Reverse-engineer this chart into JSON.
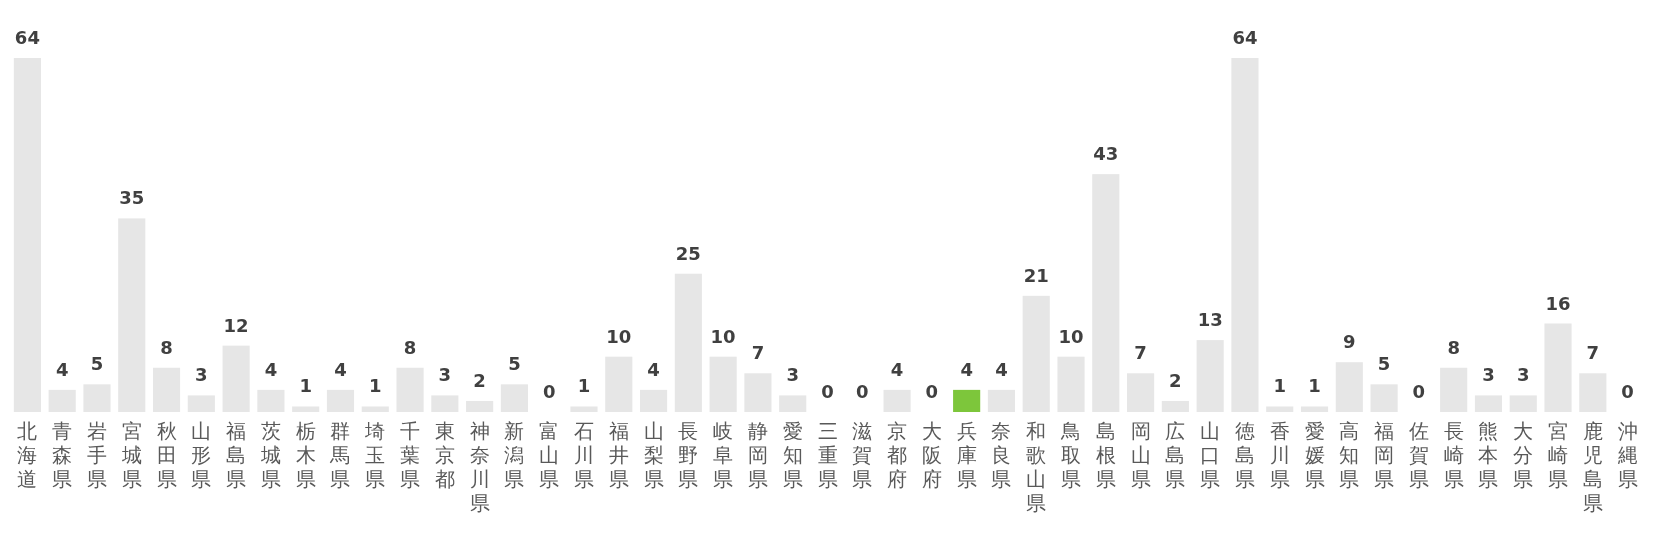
{
  "chart_data": {
    "type": "bar",
    "categories": [
      "北海道",
      "青森県",
      "岩手県",
      "宮城県",
      "秋田県",
      "山形県",
      "福島県",
      "茨城県",
      "栃木県",
      "群馬県",
      "埼玉県",
      "千葉県",
      "東京都",
      "神奈川県",
      "新潟県",
      "富山県",
      "石川県",
      "福井県",
      "山梨県",
      "長野県",
      "岐阜県",
      "静岡県",
      "愛知県",
      "三重県",
      "滋賀県",
      "京都府",
      "大阪府",
      "兵庫県",
      "奈良県",
      "和歌山県",
      "鳥取県",
      "島根県",
      "岡山県",
      "広島県",
      "山口県",
      "徳島県",
      "香川県",
      "愛媛県",
      "高知県",
      "福岡県",
      "佐賀県",
      "長崎県",
      "熊本県",
      "大分県",
      "宮崎県",
      "鹿児島県",
      "沖縄県"
    ],
    "values": [
      64,
      4,
      5,
      35,
      8,
      3,
      12,
      4,
      1,
      4,
      1,
      8,
      3,
      2,
      5,
      0,
      1,
      10,
      4,
      25,
      10,
      7,
      3,
      0,
      0,
      4,
      0,
      4,
      4,
      21,
      10,
      43,
      7,
      2,
      13,
      64,
      1,
      1,
      9,
      5,
      0,
      8,
      3,
      3,
      16,
      7,
      0
    ],
    "colors": [
      "#e6e6e6",
      "#e6e6e6",
      "#e6e6e6",
      "#e6e6e6",
      "#e6e6e6",
      "#e6e6e6",
      "#e6e6e6",
      "#e6e6e6",
      "#e6e6e6",
      "#e6e6e6",
      "#e6e6e6",
      "#e6e6e6",
      "#e6e6e6",
      "#e6e6e6",
      "#e6e6e6",
      "#e6e6e6",
      "#e6e6e6",
      "#e6e6e6",
      "#e6e6e6",
      "#e6e6e6",
      "#e6e6e6",
      "#e6e6e6",
      "#e6e6e6",
      "#e6e6e6",
      "#e6e6e6",
      "#e6e6e6",
      "#e6e6e6",
      "#7dc63b",
      "#e6e6e6",
      "#e6e6e6",
      "#e6e6e6",
      "#e6e6e6",
      "#e6e6e6",
      "#e6e6e6",
      "#e6e6e6",
      "#e6e6e6",
      "#e6e6e6",
      "#e6e6e6",
      "#e6e6e6",
      "#e6e6e6",
      "#e6e6e6",
      "#e6e6e6",
      "#e6e6e6",
      "#e6e6e6",
      "#e6e6e6",
      "#e6e6e6",
      "#e6e6e6"
    ],
    "data_labels": true
  }
}
